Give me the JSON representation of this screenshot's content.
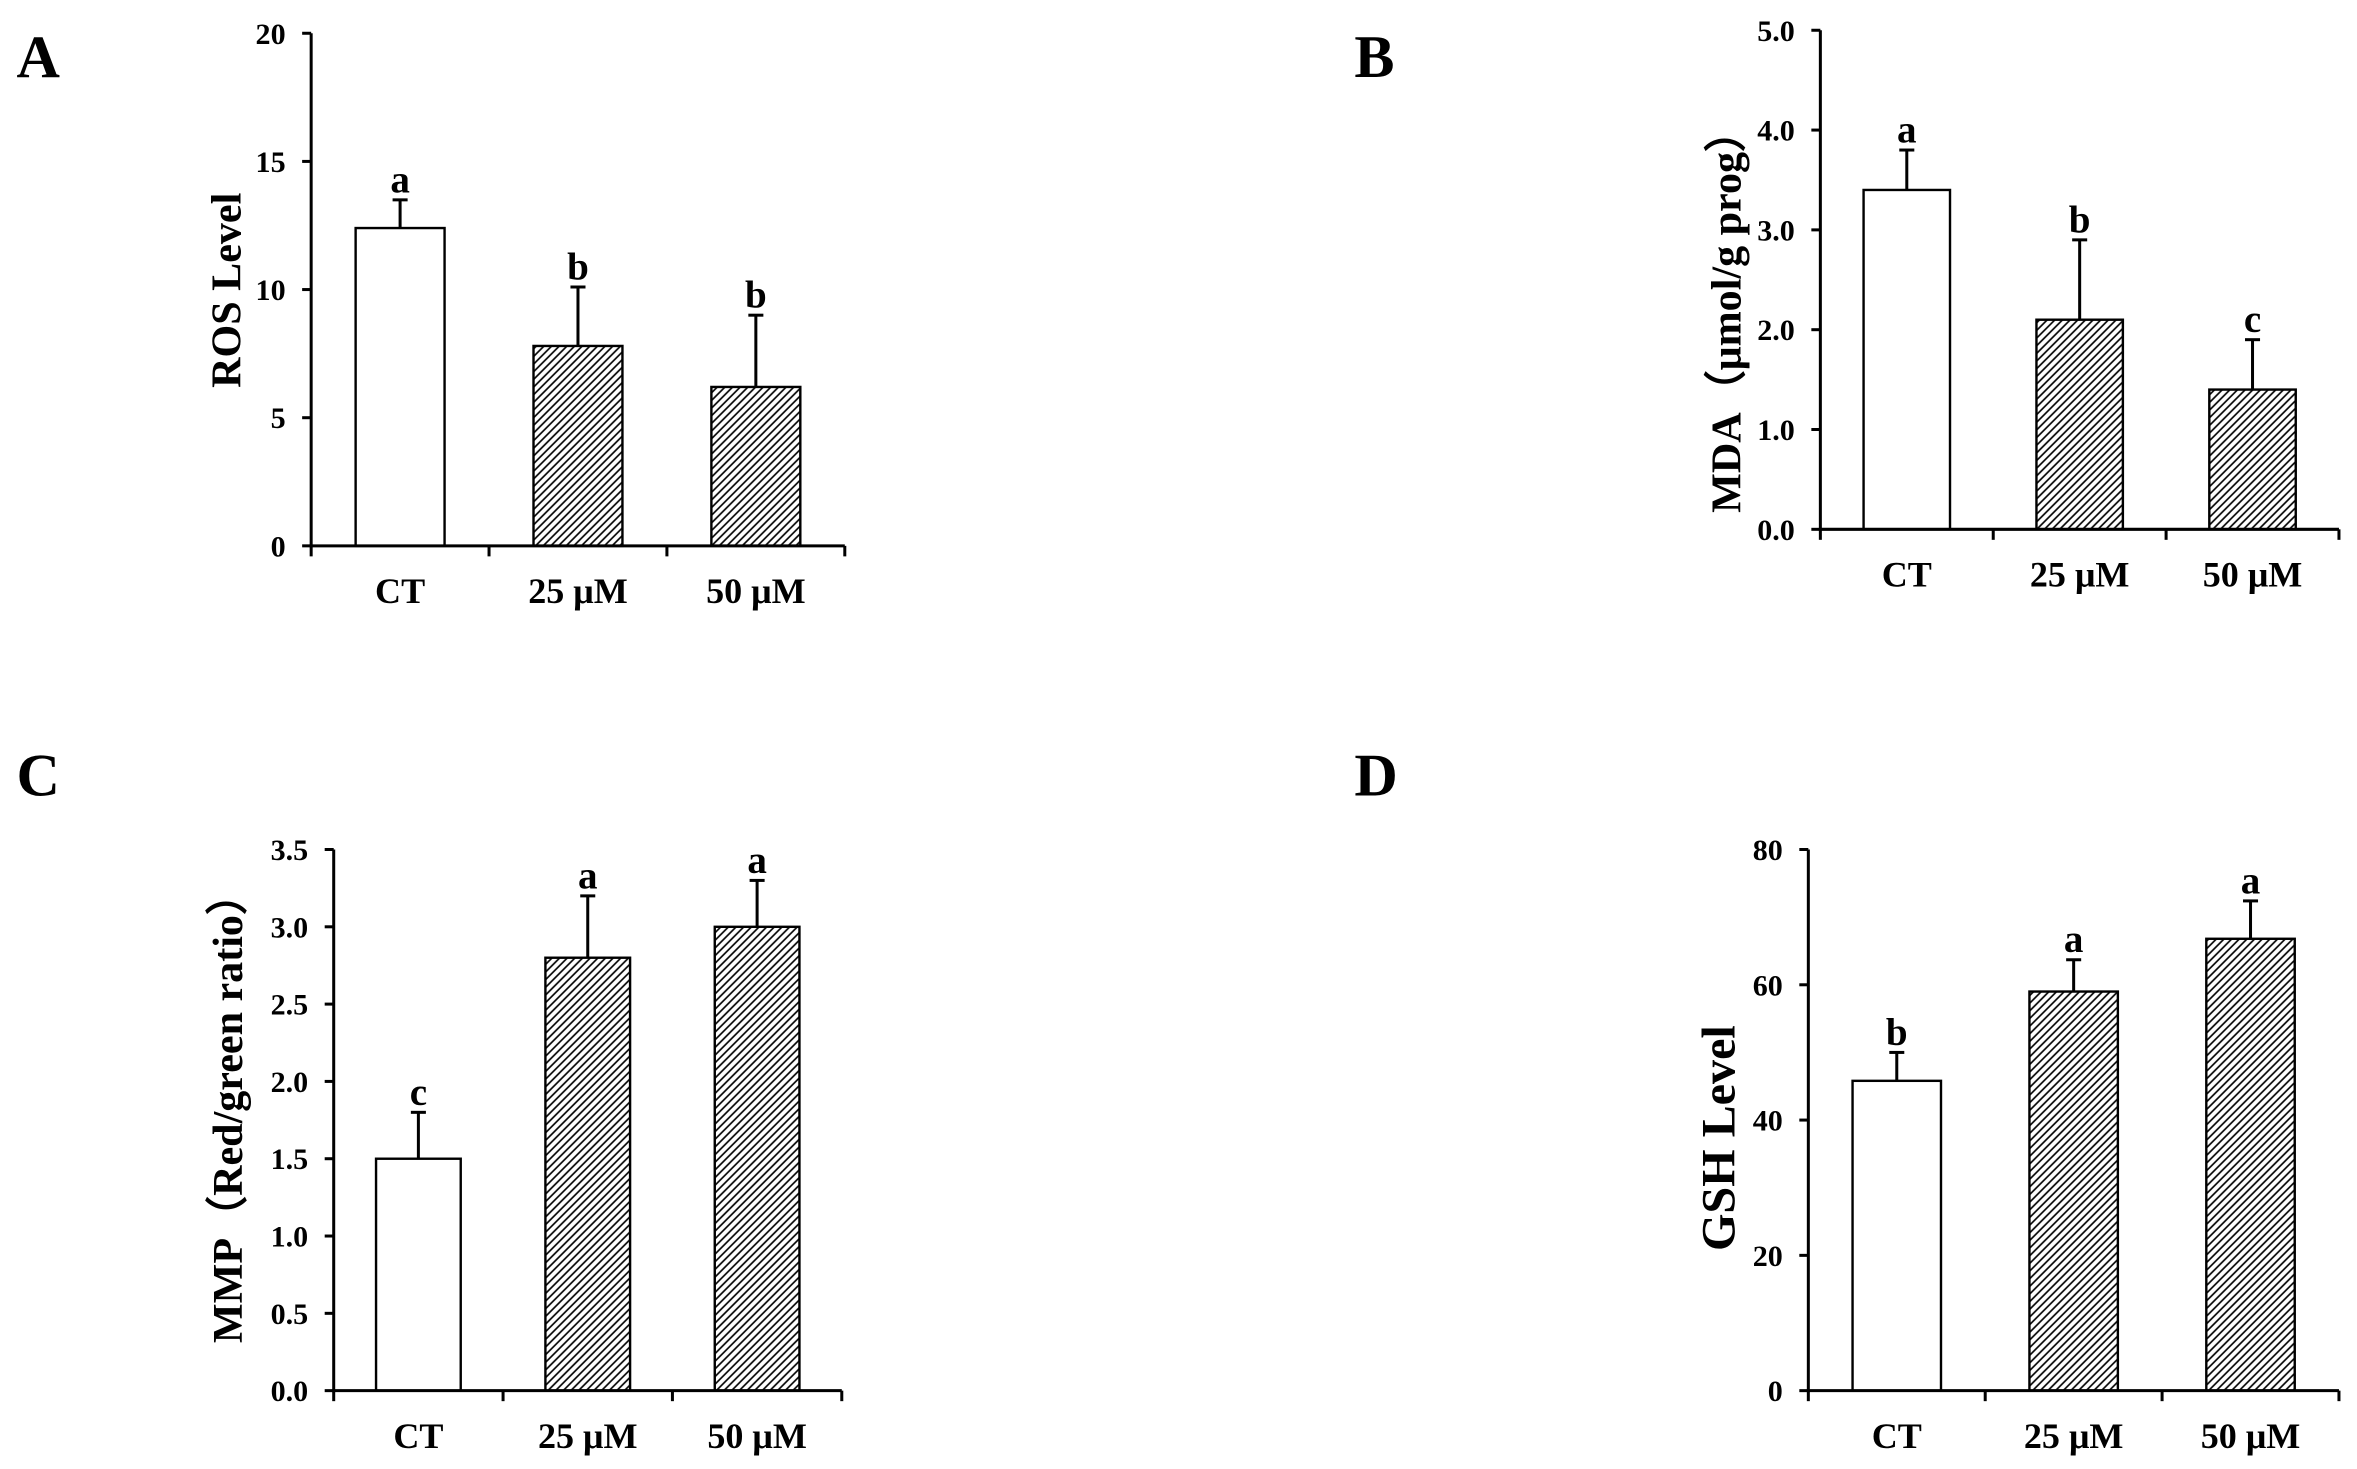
{
  "colors": {
    "ink": "#000000",
    "background": "#ffffff"
  },
  "chart_data": [
    {
      "panel": "A",
      "type": "bar",
      "ylabel": "ROS Level",
      "ylim": [
        0,
        20
      ],
      "yticks": [
        "0",
        "5",
        "10",
        "15",
        "20"
      ],
      "categories": [
        "CT",
        "25 μM",
        "50 μM"
      ],
      "values": [
        12.4,
        7.8,
        6.2
      ],
      "errors": [
        1.1,
        2.3,
        2.8
      ],
      "significance": [
        "a",
        "b",
        "b"
      ],
      "hatched": [
        false,
        true,
        true
      ]
    },
    {
      "panel": "B",
      "type": "bar",
      "ylabel": "MDA（μmol/g prog）",
      "ylim": [
        0,
        5
      ],
      "yticks": [
        "0.0",
        "1.0",
        "2.0",
        "3.0",
        "4.0",
        "5.0"
      ],
      "categories": [
        "CT",
        "25 μM",
        "50 μM"
      ],
      "values": [
        3.4,
        2.1,
        1.4
      ],
      "errors": [
        0.4,
        0.8,
        0.5
      ],
      "significance": [
        "a",
        "b",
        "c"
      ],
      "hatched": [
        false,
        true,
        true
      ]
    },
    {
      "panel": "C",
      "type": "bar",
      "ylabel": "MMP（Red/green ratio）",
      "ylim": [
        0,
        3.5
      ],
      "yticks": [
        "0.0",
        "0.5",
        "1.0",
        "1.5",
        "2.0",
        "2.5",
        "3.0",
        "3.5"
      ],
      "categories": [
        "CT",
        "25 μM",
        "50 μM"
      ],
      "values": [
        1.5,
        2.8,
        3.0
      ],
      "errors": [
        0.3,
        0.4,
        0.3
      ],
      "significance": [
        "c",
        "a",
        "a"
      ],
      "hatched": [
        false,
        true,
        true
      ]
    },
    {
      "panel": "D",
      "type": "bar",
      "ylabel": "GSH Level",
      "ylim": [
        0,
        80
      ],
      "yticks": [
        "0",
        "20",
        "40",
        "60",
        "80"
      ],
      "categories": [
        "CT",
        "25 μM",
        "50 μM"
      ],
      "values": [
        45.8,
        59.0,
        66.8
      ],
      "errors": [
        4.2,
        4.7,
        5.6
      ],
      "significance": [
        "b",
        "a",
        "a"
      ],
      "hatched": [
        false,
        true,
        true
      ]
    }
  ]
}
